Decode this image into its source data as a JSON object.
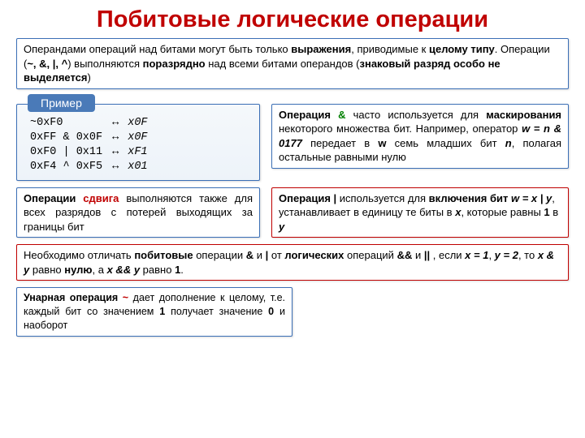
{
  "title": "Побитовые логические операции",
  "intro": {
    "t1": "Операндами операций над битами могут быть только ",
    "b1": "выражения",
    "t2": ", приводимые к ",
    "b2": "целому типу",
    "t3": ".  Операции (",
    "ops": "~, &, |, ^",
    "t4": ") выполняются ",
    "b3": "поразрядно",
    "t5": " над всеми битами операндов (",
    "b4": "знаковый разряд особо не выделяется",
    "t6": ")"
  },
  "example": {
    "badge": "Пример",
    "rows": [
      [
        "~0xF0",
        "↔",
        "x0F"
      ],
      [
        "0xFF & 0x0F",
        "↔",
        "x0F"
      ],
      [
        "0xF0 | 0x11",
        "↔",
        "xF1"
      ],
      [
        "0xF4 ^ 0xF5",
        "↔",
        "x01"
      ]
    ]
  },
  "andBox": {
    "t1": "Операция ",
    "amp": "&",
    "t2": " часто используется для ",
    "b1": "маскирования",
    "t3": " некоторого множества бит. Например, оператор ",
    "expr": "w = n & 0177",
    "t4": " передает в ",
    "w": "w",
    "t5": " семь младших бит ",
    "n": "n",
    "t6": ", полагая остальные равными нулю"
  },
  "shiftBox": {
    "t1": "Операции ",
    "b1": "сдвига",
    "t2": " выполняются также для всех разрядов с потерей выходящих за границы бит"
  },
  "orBox": {
    "t1": "Операция ",
    "b1": "|",
    "t2": " используется для ",
    "b2": "включения бит ",
    "expr": "w = x | y",
    "t3": ", устанавливает в единицу те биты в ",
    "x": "x",
    "t4": ", которые равны ",
    "one": "1",
    "t5": " в ",
    "y": "y"
  },
  "diffBox": {
    "t1": "Необходимо отличать ",
    "b1": "побитовые",
    "t2": " операции ",
    "amp": "&",
    "t3": " и ",
    "pipe": "|",
    "t4": " от ",
    "b2": "логических",
    "t5": " операций ",
    "aamp": "&&",
    "t6": " и ",
    "ppipe": "||",
    "t7": " , если  ",
    "xeq": "x = 1",
    "t8": ", ",
    "yeq": "y = 2",
    "t9": ", то ",
    "e1": "x & y",
    "t10": " равно ",
    "zero": "нулю",
    "t11": ",  а   ",
    "e2": "x && y",
    "t12": "   равно ",
    "one": "1",
    "dot": "."
  },
  "tildeBox": {
    "t1": "Унарная операция  ",
    "tilde": "~",
    "t2": " дает дополнение к целому, т.е. каждый бит со значением ",
    "one": "1",
    "t3": " получает значение ",
    "zero": "0",
    "t4": " и наоборот"
  }
}
